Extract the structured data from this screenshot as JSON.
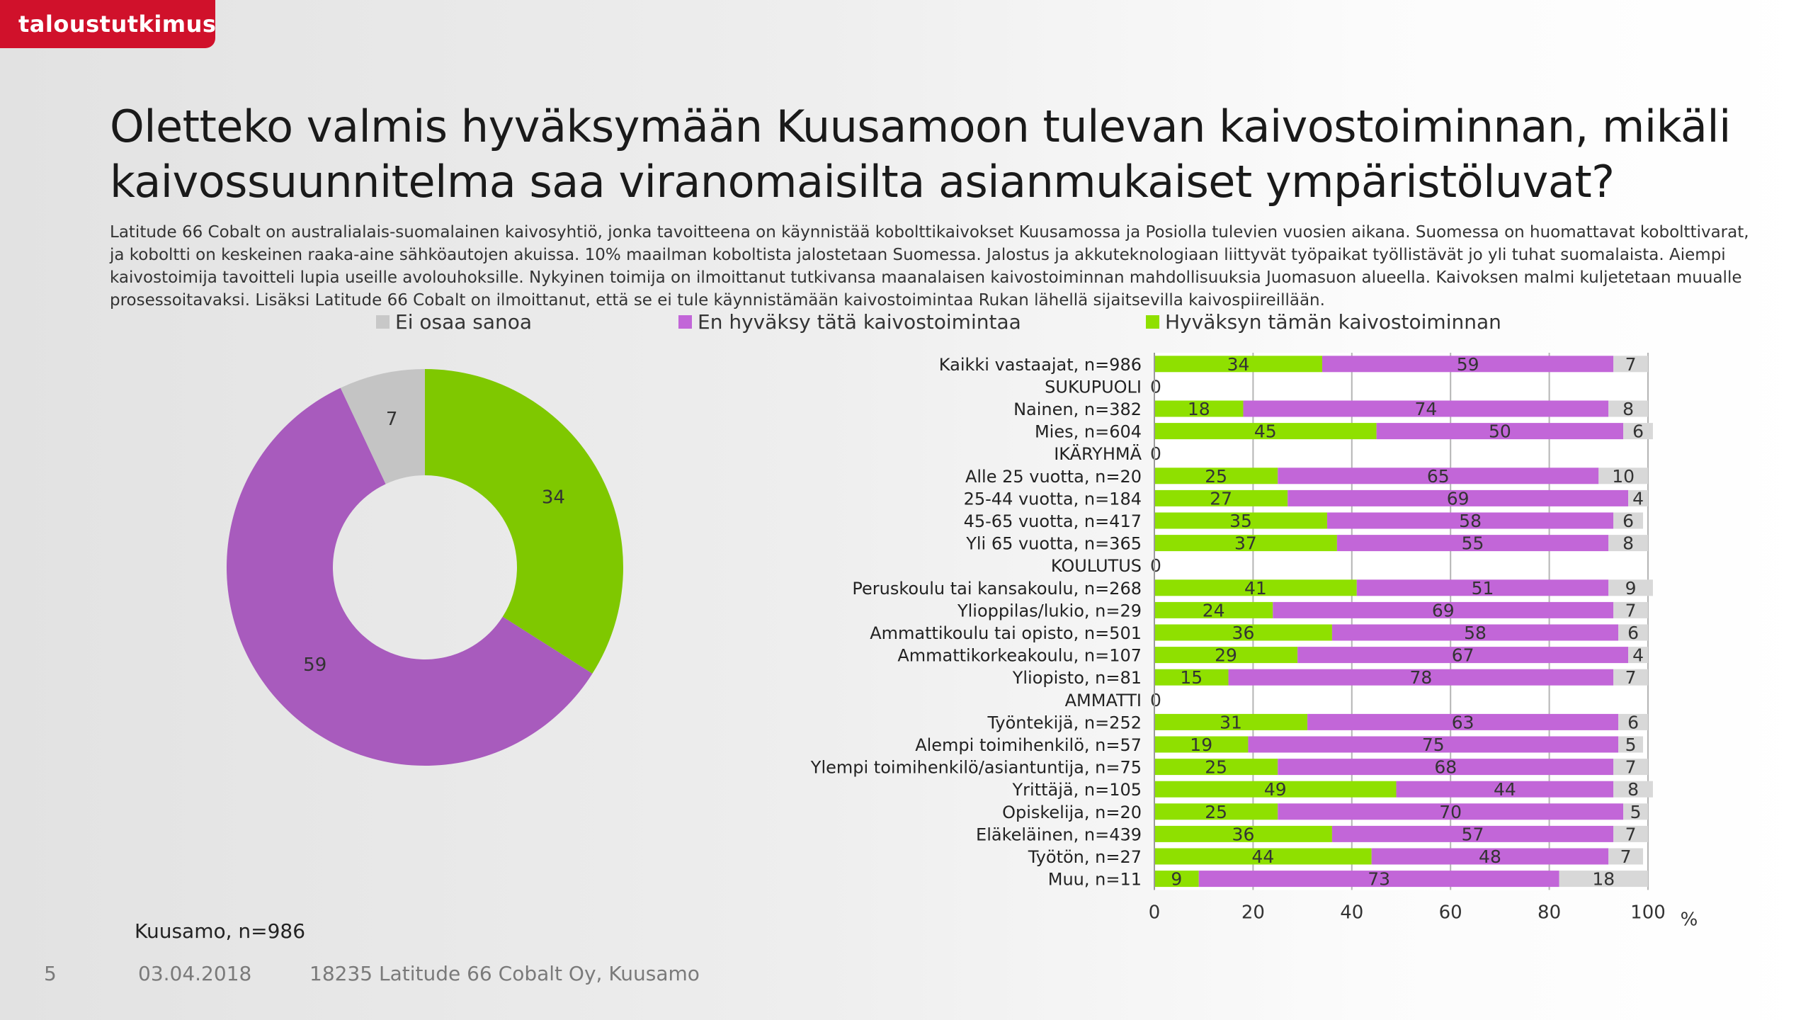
{
  "brand": {
    "logo_text": "taloustutkimus"
  },
  "title": "Oletteko valmis hyväksymään Kuusamoon tulevan kaivostoiminnan, mikäli kaivossuunnitelma saa viranomaisilta asianmukaiset ympäristöluvat?",
  "intro": "Latitude 66 Cobalt on australialais-suomalainen kaivosyhtiö, jonka tavoitteena on käynnistää kobolttikaivokset Kuusamossa ja Posiolla tulevien vuosien aikana. Suomessa on huomattavat kobolttivarat, ja koboltti on keskeinen raaka-aine sähköautojen akuissa. 10% maailman koboltista jalostetaan Suomessa. Jalostus ja akkuteknologiaan liittyvät työpaikat työllistävät jo yli tuhat suomalaista. Aiempi kaivostoimija tavoitteli lupia useille avolouhoksille. Nykyinen toimija on ilmoittanut tutkivansa maanalaisen kaivostoiminnan mahdollisuuksia Juomasuon alueella. Kaivoksen malmi kuljetetaan muualle prosessoitavaksi. Lisäksi Latitude 66 Cobalt on ilmoittanut, että se ei tule käynnistämään kaivostoimintaa Rukan lähellä sijaitsevilla kaivospiireillään.",
  "legend": [
    {
      "label": "Ei osaa sanoa",
      "color": "#c8c8c8"
    },
    {
      "label": "En hyväksy tätä kaivostoimintaa",
      "color": "#c266d8"
    },
    {
      "label": "Hyväksyn tämän kaivostoiminnan",
      "color": "#8fe000"
    }
  ],
  "chart_data": [
    {
      "type": "pie",
      "variant": "donut",
      "caption": "Kuusamo, n=986",
      "slices": [
        {
          "series": "Hyväksyn tämän kaivostoiminnan",
          "value": 34,
          "color": "#7fc800"
        },
        {
          "series": "En hyväksy tätä kaivostoimintaa",
          "value": 59,
          "color": "#a85bbd"
        },
        {
          "series": "Ei osaa sanoa",
          "value": 7,
          "color": "#c4c4c4"
        }
      ]
    },
    {
      "type": "bar",
      "orientation": "horizontal",
      "stacked": true,
      "xlim": [
        0,
        100
      ],
      "xticks": [
        0,
        20,
        40,
        60,
        80,
        100
      ],
      "xlabel": "%",
      "grid": true,
      "categories": [
        "Kaikki vastaajat, n=986",
        "SUKUPUOLI",
        "Nainen, n=382",
        "Mies, n=604",
        "IKÄRYHMÄ",
        "Alle 25 vuotta, n=20",
        "25-44 vuotta, n=184",
        "45-65 vuotta, n=417",
        "Yli 65 vuotta, n=365",
        "KOULUTUS",
        "Peruskoulu tai kansakoulu, n=268",
        "Ylioppilas/lukio, n=29",
        "Ammattikoulu tai opisto, n=501",
        "Ammattikorkeakoulu, n=107",
        "Yliopisto, n=81",
        "AMMATTI",
        "Työntekijä, n=252",
        "Alempi toimihenkilö, n=57",
        "Ylempi toimihenkilö/asiantuntija, n=75",
        "Yrittäjä, n=105",
        "Opiskelija, n=20",
        "Eläkeläinen, n=439",
        "Työtön, n=27",
        "Muu, n=11"
      ],
      "series": [
        {
          "name": "Hyväksyn tämän kaivostoiminnan",
          "color": "#8fe000",
          "values": [
            34,
            0,
            18,
            45,
            0,
            25,
            27,
            35,
            37,
            0,
            41,
            24,
            36,
            29,
            15,
            0,
            31,
            19,
            25,
            49,
            25,
            36,
            44,
            9
          ]
        },
        {
          "name": "En hyväksy tätä kaivostoimintaa",
          "color": "#c266d8",
          "values": [
            59,
            null,
            74,
            50,
            null,
            65,
            69,
            58,
            55,
            null,
            51,
            69,
            58,
            67,
            78,
            null,
            63,
            75,
            68,
            44,
            70,
            57,
            48,
            73
          ]
        },
        {
          "name": "Ei osaa sanoa",
          "color": "#d8d8d8",
          "values": [
            7,
            null,
            8,
            6,
            null,
            10,
            4,
            6,
            8,
            null,
            9,
            7,
            6,
            4,
            7,
            null,
            6,
            5,
            7,
            8,
            5,
            7,
            7,
            18
          ]
        }
      ]
    }
  ],
  "footer": {
    "page_number": "5",
    "date": "03.04.2018",
    "project": "18235 Latitude 66 Cobalt Oy, Kuusamo"
  }
}
